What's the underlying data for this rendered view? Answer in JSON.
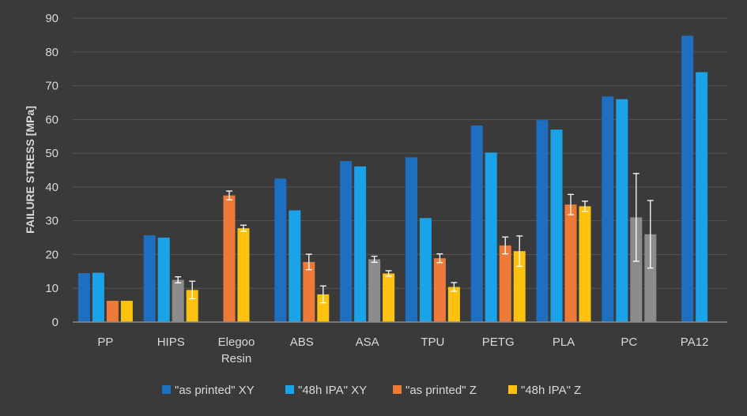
{
  "chart_data": {
    "type": "bar",
    "title": "",
    "xlabel": "",
    "ylabel": "FAILURE STRESS [MPa]",
    "ylim": [
      0,
      90
    ],
    "yticks": [
      0,
      10,
      20,
      30,
      40,
      50,
      60,
      70,
      80,
      90
    ],
    "grid": true,
    "legend_position": "bottom",
    "categories": [
      [
        "PP"
      ],
      [
        "HIPS"
      ],
      [
        "Elegoo",
        "Resin"
      ],
      [
        "ABS"
      ],
      [
        "ASA"
      ],
      [
        "TPU"
      ],
      [
        "PETG"
      ],
      [
        "PLA"
      ],
      [
        "PC"
      ],
      [
        "PA12"
      ]
    ],
    "series": [
      {
        "name": "\"as printed\" XY",
        "color": "#1f6fc0",
        "in_legend": true,
        "values": [
          14.5,
          25.7,
          null,
          42.5,
          47.7,
          48.8,
          58.2,
          59.8,
          66.8,
          84.8
        ]
      },
      {
        "name": "\"48h IPA\" XY",
        "color": "#1aa3e8",
        "in_legend": true,
        "values": [
          14.6,
          25.0,
          null,
          33.1,
          46.1,
          30.8,
          50.2,
          57.0,
          66.0,
          74.0
        ]
      },
      {
        "name": "\"as printed\" Z",
        "color": "#ee7a3a",
        "in_legend": true,
        "values": [
          6.3,
          null,
          37.5,
          17.8,
          null,
          18.9,
          22.7,
          34.8,
          null,
          null
        ],
        "errors": [
          null,
          null,
          1.3,
          2.3,
          null,
          1.3,
          2.5,
          3.0,
          null,
          null
        ]
      },
      {
        "name": "",
        "color": "#8c8c8c",
        "in_legend": false,
        "values": [
          null,
          12.5,
          null,
          null,
          18.6,
          null,
          null,
          null,
          31.0,
          null
        ],
        "errors": [
          null,
          0.9,
          null,
          null,
          0.9,
          null,
          null,
          null,
          13.0,
          null
        ]
      },
      {
        "name": "\"48h IPA\" Z",
        "color": "#fcc20f",
        "in_legend": true,
        "values": [
          6.3,
          9.5,
          27.8,
          8.2,
          14.4,
          10.4,
          21.0,
          34.3,
          null,
          null
        ],
        "errors": [
          null,
          2.6,
          0.9,
          2.5,
          0.8,
          1.3,
          4.5,
          1.5,
          null,
          null
        ]
      },
      {
        "name": "",
        "color": "#8c8c8c",
        "in_legend": false,
        "values": [
          null,
          null,
          null,
          null,
          null,
          null,
          null,
          null,
          26.0,
          null
        ],
        "errors": [
          null,
          null,
          null,
          null,
          null,
          null,
          null,
          null,
          10.0,
          null
        ]
      }
    ]
  },
  "colors": {
    "background": "#3a3a3a",
    "gridline": "#555555",
    "axis": "#8a8a8a",
    "text": "#d9d9d9",
    "error_bar": "#ffffff"
  }
}
